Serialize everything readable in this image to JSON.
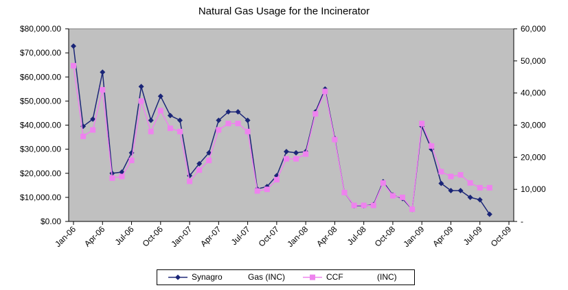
{
  "chart_data": {
    "type": "line",
    "title": "Natural Gas Usage for the Incinerator",
    "x_ticks": [
      "Jan-06",
      "Apr-06",
      "Jul-06",
      "Oct-06",
      "Jan-07",
      "Apr-07",
      "Jul-07",
      "Oct-07",
      "Jan-08",
      "Apr-08",
      "Jul-08",
      "Oct-08",
      "Jan-09",
      "Apr-09",
      "Jul-09",
      "Oct-09"
    ],
    "x_start": "Jan-06",
    "x_end": "Oct-09",
    "y_left_ticks": [
      "$0.00",
      "$10,000.00",
      "$20,000.00",
      "$30,000.00",
      "$40,000.00",
      "$50,000.00",
      "$60,000.00",
      "$70,000.00",
      "$80,000.00"
    ],
    "y_left_lim": [
      0,
      80000
    ],
    "y_right_ticks": [
      "-",
      "10,000",
      "20,000",
      "30,000",
      "40,000",
      "50,000",
      "60,000"
    ],
    "y_right_lim": [
      0,
      60000
    ],
    "grid": false,
    "legend_position": "bottom",
    "series": [
      {
        "name": "Synagro Gas (INC)",
        "legend_parts": [
          "Synagro",
          "Gas (INC)"
        ],
        "axis": "left",
        "color": "#1a2577",
        "marker": "diamond",
        "points": [
          [
            "Jan-06",
            72800
          ],
          [
            "Feb-06",
            39500
          ],
          [
            "Mar-06",
            42500
          ],
          [
            "Apr-06",
            62000
          ],
          [
            "May-06",
            20000
          ],
          [
            "Jun-06",
            20500
          ],
          [
            "Jul-06",
            28500
          ],
          [
            "Aug-06",
            56000
          ],
          [
            "Sep-06",
            42000
          ],
          [
            "Oct-06",
            52000
          ],
          [
            "Nov-06",
            44000
          ],
          [
            "Dec-06",
            42000
          ],
          [
            "Jan-07",
            19000
          ],
          [
            "Feb-07",
            24000
          ],
          [
            "Mar-07",
            28500
          ],
          [
            "Apr-07",
            42000
          ],
          [
            "May-07",
            45500
          ],
          [
            "Jun-07",
            45500
          ],
          [
            "Jul-07",
            42000
          ],
          [
            "Aug-07",
            13500
          ],
          [
            "Sep-07",
            14500
          ],
          [
            "Oct-07",
            19000
          ],
          [
            "Nov-07",
            29000
          ],
          [
            "Dec-07",
            28500
          ],
          [
            "Jan-08",
            29000
          ],
          [
            "Feb-08",
            45500
          ],
          [
            "Mar-08",
            55000
          ],
          [
            "Apr-08",
            34500
          ],
          [
            "May-08",
            12000
          ],
          [
            "Jun-08",
            6500
          ],
          [
            "Jul-08",
            6500
          ],
          [
            "Aug-08",
            7000
          ],
          [
            "Sep-08",
            16500
          ],
          [
            "Oct-08",
            11000
          ],
          [
            "Nov-08",
            9500
          ],
          [
            "Dec-08",
            5000
          ],
          [
            "Jan-09",
            39500
          ],
          [
            "Feb-09",
            30000
          ],
          [
            "Mar-09",
            15800
          ],
          [
            "Apr-09",
            12800
          ],
          [
            "May-09",
            12800
          ],
          [
            "Jun-09",
            10000
          ],
          [
            "Jul-09",
            9000
          ],
          [
            "Aug-09",
            3000
          ]
        ]
      },
      {
        "name": "CCF (INC)",
        "legend_parts": [
          "CCF",
          "(INC)"
        ],
        "axis": "right",
        "color": "#ee82ee",
        "marker": "square",
        "points": [
          [
            "Jan-06",
            48500
          ],
          [
            "Feb-06",
            26500
          ],
          [
            "Mar-06",
            28500
          ],
          [
            "Apr-06",
            41000
          ],
          [
            "May-06",
            13500
          ],
          [
            "Jun-06",
            14000
          ],
          [
            "Jul-06",
            19000
          ],
          [
            "Aug-06",
            37500
          ],
          [
            "Sep-06",
            28000
          ],
          [
            "Oct-06",
            34500
          ],
          [
            "Nov-06",
            29000
          ],
          [
            "Dec-06",
            28000
          ],
          [
            "Jan-07",
            12500
          ],
          [
            "Feb-07",
            16000
          ],
          [
            "Mar-07",
            19000
          ],
          [
            "Apr-07",
            28500
          ],
          [
            "May-07",
            30500
          ],
          [
            "Jun-07",
            30500
          ],
          [
            "Jul-07",
            28000
          ],
          [
            "Aug-07",
            9500
          ],
          [
            "Sep-07",
            10000
          ],
          [
            "Oct-07",
            13000
          ],
          [
            "Nov-07",
            19500
          ],
          [
            "Dec-07",
            19500
          ],
          [
            "Jan-08",
            21000
          ],
          [
            "Feb-08",
            33500
          ],
          [
            "Mar-08",
            40500
          ],
          [
            "Apr-08",
            25500
          ],
          [
            "May-08",
            9000
          ],
          [
            "Jun-08",
            5000
          ],
          [
            "Jul-08",
            5000
          ],
          [
            "Aug-08",
            5000
          ],
          [
            "Sep-08",
            12000
          ],
          [
            "Oct-08",
            8000
          ],
          [
            "Nov-08",
            7500
          ],
          [
            "Dec-08",
            3800
          ],
          [
            "Jan-09",
            30500
          ],
          [
            "Feb-09",
            23500
          ],
          [
            "Mar-09",
            15500
          ],
          [
            "Apr-09",
            14000
          ],
          [
            "May-09",
            14500
          ],
          [
            "Jun-09",
            12000
          ],
          [
            "Jul-09",
            10500
          ],
          [
            "Aug-09",
            10500
          ]
        ]
      }
    ]
  }
}
